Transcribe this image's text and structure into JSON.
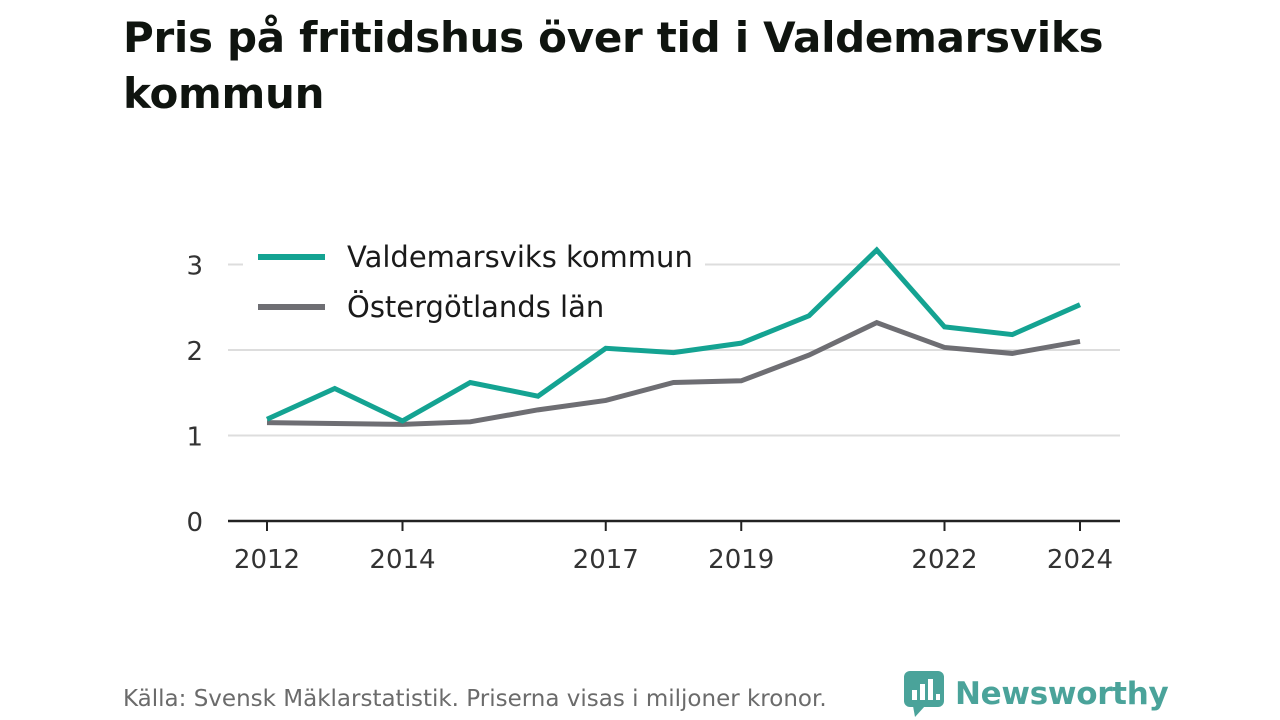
{
  "title": "Pris på fritidshus över tid i Valdemarsviks kommun",
  "footer": {
    "source": "Källa: Svensk Mäklarstatistik. Priserna visas i miljoner kronor.",
    "brand": "Newsworthy"
  },
  "colors": {
    "valdemarsvik": "#14a392",
    "ostergotland": "#6e6e73",
    "grid": "#dddddd",
    "axis": "#222222",
    "brand": "#4aa39a"
  },
  "chart_data": {
    "type": "line",
    "x": [
      2012,
      2013,
      2014,
      2015,
      2016,
      2017,
      2018,
      2019,
      2020,
      2021,
      2022,
      2023,
      2024
    ],
    "x_ticks": [
      "2012",
      "2014",
      "2017",
      "2019",
      "2022",
      "2024"
    ],
    "y_ticks": [
      "0",
      "1",
      "2",
      "3"
    ],
    "ylim": [
      0,
      3.2
    ],
    "grid": true,
    "legend_position": "top-left",
    "series": [
      {
        "name": "Valdemarsviks kommun",
        "values": [
          1.19,
          1.55,
          1.17,
          1.62,
          1.46,
          2.02,
          1.97,
          2.08,
          2.4,
          3.17,
          2.27,
          2.18,
          2.53
        ]
      },
      {
        "name": "Östergötlands län",
        "values": [
          1.15,
          1.14,
          1.13,
          1.16,
          1.3,
          1.41,
          1.62,
          1.64,
          1.94,
          2.32,
          2.03,
          1.96,
          2.1
        ]
      }
    ]
  }
}
